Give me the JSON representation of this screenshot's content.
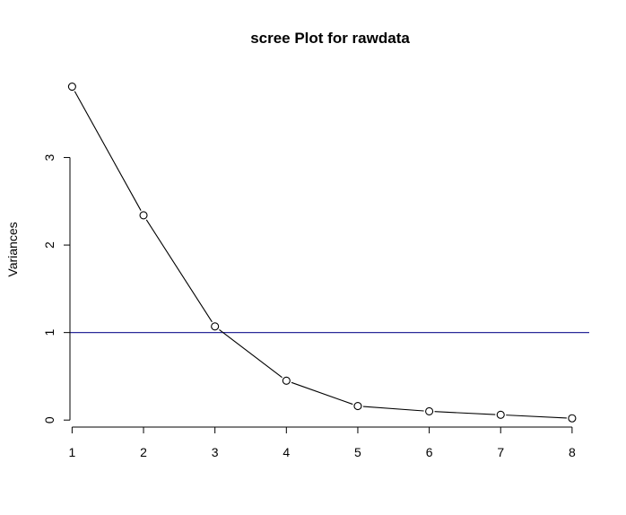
{
  "chart_data": {
    "type": "line",
    "title": "scree Plot for rawdata",
    "xlabel": "",
    "ylabel": "Variances",
    "x": [
      1,
      2,
      3,
      4,
      5,
      6,
      7,
      8
    ],
    "series": [
      {
        "values": [
          3.81,
          2.34,
          1.07,
          0.45,
          0.16,
          0.1,
          0.06,
          0.02
        ],
        "marker": "open-circle",
        "color": "#000000"
      }
    ],
    "x_ticks": [
      "1",
      "2",
      "3",
      "4",
      "5",
      "6",
      "7",
      "8"
    ],
    "y_ticks": [
      "0",
      "1",
      "2",
      "3"
    ],
    "xlim": [
      0.97,
      8.24
    ],
    "ylim": [
      -0.08,
      4.0
    ],
    "reference_line": {
      "y": 1,
      "color": "#2b2b9a",
      "orientation": "horizontal"
    },
    "grid": false,
    "legend": "none"
  }
}
